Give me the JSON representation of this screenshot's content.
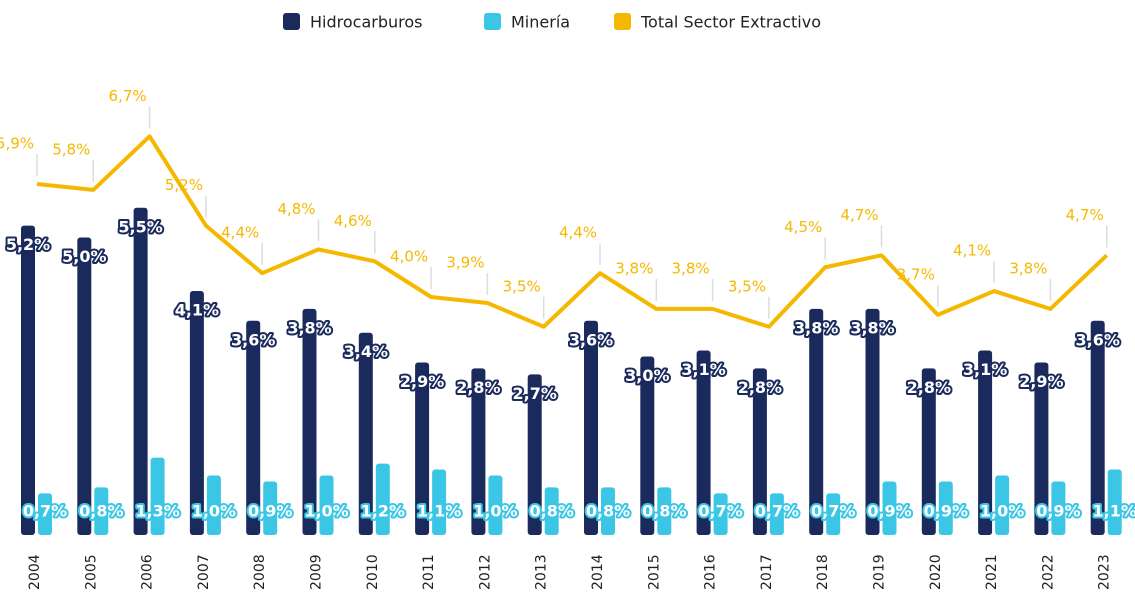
{
  "chart_data": {
    "type": "bar-line",
    "categories": [
      "2004",
      "2005",
      "2006",
      "2007",
      "2008",
      "2009",
      "2010",
      "2011",
      "2012",
      "2013",
      "2014",
      "2015",
      "2016",
      "2017",
      "2018",
      "2019",
      "2020",
      "2021",
      "2022",
      "2023"
    ],
    "series": [
      {
        "name": "Hidrocarburos",
        "type": "bar",
        "color": "#1b2a5c",
        "values": [
          5.2,
          5.0,
          5.5,
          4.1,
          3.6,
          3.8,
          3.4,
          2.9,
          2.8,
          2.7,
          3.6,
          3.0,
          3.1,
          2.8,
          3.8,
          3.8,
          2.8,
          3.1,
          2.9,
          3.6
        ],
        "value_labels": [
          "5,2%",
          "5,0%",
          "5,5%",
          "4,1%",
          "3,6%",
          "3,8%",
          "3,4%",
          "2,9%",
          "2,8%",
          "2,7%",
          "3,6%",
          "3,0%",
          "3,1%",
          "2,8%",
          "3,8%",
          "3,8%",
          "2,8%",
          "3,1%",
          "2,9%",
          "3,6%"
        ]
      },
      {
        "name": "Minería",
        "type": "bar",
        "color": "#3cc6e6",
        "values": [
          0.7,
          0.8,
          1.3,
          1.0,
          0.9,
          1.0,
          1.2,
          1.1,
          1.0,
          0.8,
          0.8,
          0.8,
          0.7,
          0.7,
          0.7,
          0.9,
          0.9,
          1.0,
          0.9,
          1.1
        ],
        "value_labels": [
          "0,7%",
          "0,8%",
          "1,3%",
          "1,0%",
          "0,9%",
          "1,0%",
          "1,2%",
          "1,1%",
          "1,0%",
          "0,8%",
          "0,8%",
          "0,8%",
          "0,7%",
          "0,7%",
          "0,7%",
          "0,9%",
          "0,9%",
          "1,0%",
          "0,9%",
          "1,1%"
        ]
      },
      {
        "name": "Total Sector Extractivo",
        "type": "line",
        "color": "#f5b800",
        "values": [
          5.9,
          5.8,
          6.7,
          5.2,
          4.4,
          4.8,
          4.6,
          4.0,
          3.9,
          3.5,
          4.4,
          3.8,
          3.8,
          3.5,
          4.5,
          4.7,
          3.7,
          4.1,
          3.8,
          4.7
        ],
        "value_labels": [
          "5,9%",
          "5,8%",
          "6,7%",
          "5,2%",
          "4,4%",
          "4,8%",
          "4,6%",
          "4,0%",
          "3,9%",
          "3,5%",
          "4,4%",
          "3,8%",
          "3,8%",
          "3,5%",
          "4,5%",
          "4,7%",
          "3,7%",
          "4,1%",
          "3,8%",
          "4,7%"
        ]
      }
    ],
    "ylim": [
      0,
      8
    ],
    "legend": "top"
  }
}
